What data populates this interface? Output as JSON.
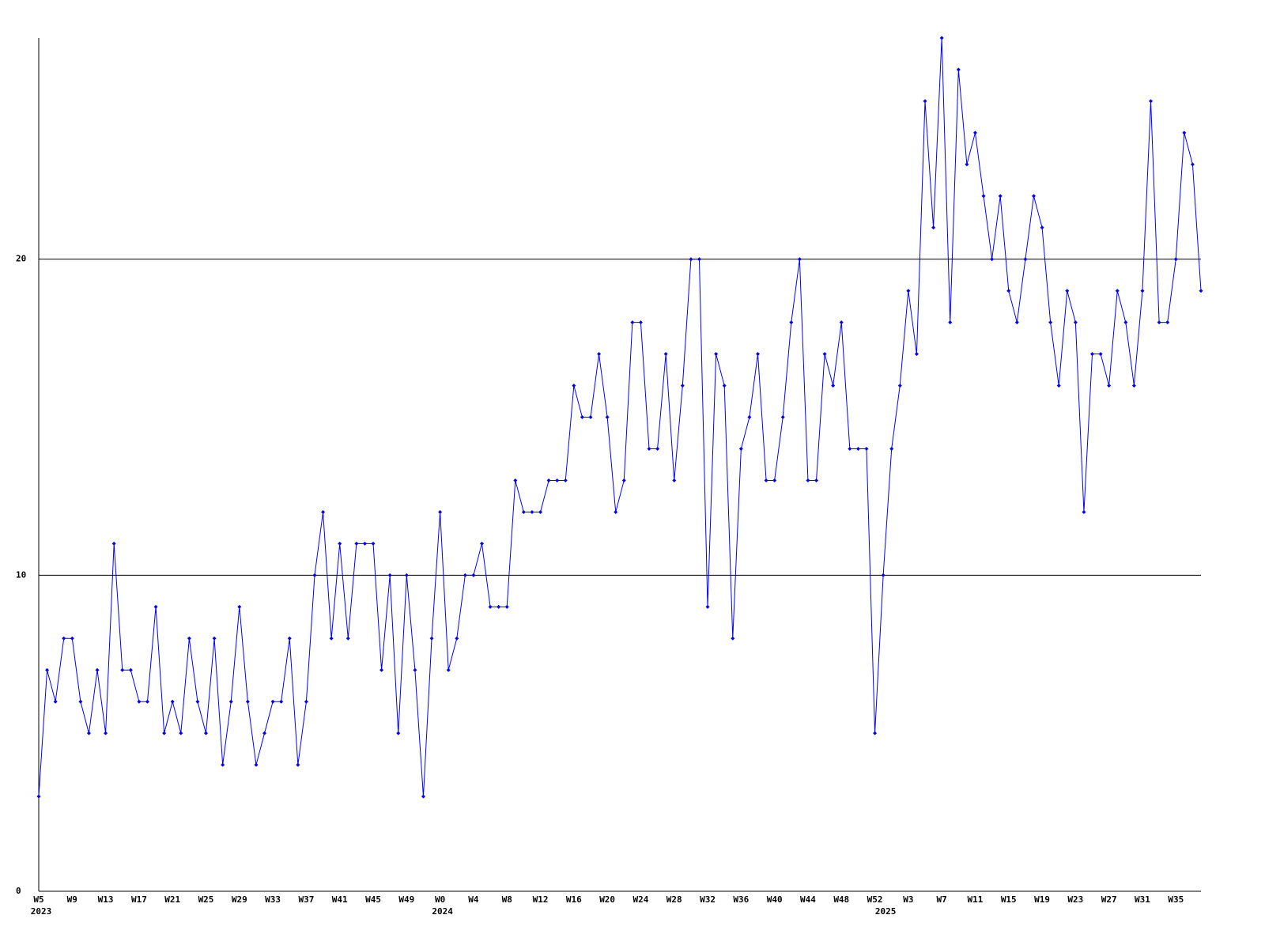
{
  "chart_data": {
    "type": "line",
    "color": "#0000ff",
    "grid": true,
    "ylim": [
      0,
      27
    ],
    "yticks": [
      0,
      10,
      20
    ],
    "categories": [
      "W5",
      null,
      null,
      null,
      "W9",
      null,
      null,
      null,
      "W13",
      null,
      null,
      null,
      "W17",
      null,
      null,
      null,
      "W21",
      null,
      null,
      null,
      "W25",
      null,
      null,
      null,
      "W29",
      null,
      null,
      null,
      "W33",
      null,
      null,
      null,
      "W37",
      null,
      null,
      null,
      "W41",
      null,
      null,
      null,
      "W45",
      null,
      null,
      null,
      "W49",
      null,
      null,
      null,
      "W0",
      null,
      null,
      null,
      "W4",
      null,
      null,
      null,
      "W8",
      null,
      null,
      null,
      "W12",
      null,
      null,
      null,
      "W16",
      null,
      null,
      null,
      "W20",
      null,
      null,
      null,
      "W24",
      null,
      null,
      null,
      "W28",
      null,
      null,
      null,
      "W32",
      null,
      null,
      null,
      "W36",
      null,
      null,
      null,
      "W40",
      null,
      null,
      null,
      "W44",
      null,
      null,
      null,
      "W48",
      null,
      null,
      null,
      "W52",
      null,
      null,
      null,
      "W3",
      null,
      null,
      null,
      "W7",
      null,
      null,
      null,
      "W11",
      null,
      null,
      null,
      "W15",
      null,
      null,
      null,
      "W19",
      null,
      null,
      null,
      "W23",
      null,
      null,
      null,
      "W27",
      null,
      null,
      null,
      "W31",
      null,
      null,
      null,
      "W35",
      null,
      null,
      null
    ],
    "years": [
      "2023",
      null,
      null,
      null,
      null,
      null,
      null,
      null,
      null,
      null,
      null,
      null,
      null,
      null,
      null,
      null,
      null,
      null,
      null,
      null,
      null,
      null,
      null,
      null,
      null,
      null,
      null,
      null,
      null,
      null,
      null,
      null,
      null,
      null,
      null,
      null,
      null,
      null,
      null,
      null,
      null,
      null,
      null,
      null,
      null,
      null,
      null,
      null,
      "2024",
      null,
      null,
      null,
      null,
      null,
      null,
      null,
      null,
      null,
      null,
      null,
      null,
      null,
      null,
      null,
      null,
      null,
      null,
      null,
      null,
      null,
      null,
      null,
      null,
      null,
      null,
      null,
      null,
      null,
      null,
      null,
      null,
      null,
      null,
      null,
      null,
      null,
      null,
      null,
      null,
      null,
      null,
      null,
      null,
      null,
      null,
      null,
      null,
      null,
      null,
      null,
      null,
      "2025",
      null,
      null,
      null,
      null,
      null,
      null,
      null,
      null,
      null,
      null,
      null,
      null,
      null,
      null,
      null,
      null,
      null,
      null,
      null,
      null,
      null,
      null,
      null,
      null,
      null,
      null,
      null,
      null,
      null,
      null,
      null,
      null,
      null,
      null,
      null,
      null,
      null,
      null
    ],
    "values": [
      3,
      7,
      6,
      8,
      8,
      6,
      5,
      7,
      5,
      11,
      7,
      7,
      6,
      6,
      9,
      5,
      6,
      5,
      8,
      6,
      5,
      8,
      4,
      6,
      9,
      6,
      4,
      5,
      6,
      6,
      8,
      4,
      6,
      10,
      12,
      8,
      11,
      8,
      11,
      11,
      11,
      7,
      10,
      5,
      10,
      7,
      3,
      8,
      12,
      7,
      8,
      10,
      10,
      11,
      9,
      9,
      9,
      13,
      12,
      12,
      12,
      13,
      13,
      13,
      16,
      15,
      15,
      17,
      15,
      12,
      13,
      18,
      18,
      14,
      14,
      17,
      13,
      16,
      20,
      20,
      9,
      17,
      16,
      8,
      14,
      15,
      17,
      13,
      13,
      15,
      18,
      20,
      13,
      13,
      17,
      16,
      18,
      14,
      14,
      14,
      5,
      10,
      14,
      16,
      19,
      17,
      25,
      21,
      27,
      18,
      26,
      23,
      24,
      22,
      20,
      22,
      19,
      18,
      20,
      22,
      21,
      18,
      16,
      19,
      18,
      12,
      17,
      17,
      16,
      19,
      18,
      16,
      19,
      25,
      18,
      18,
      20,
      24,
      23,
      19
    ]
  }
}
